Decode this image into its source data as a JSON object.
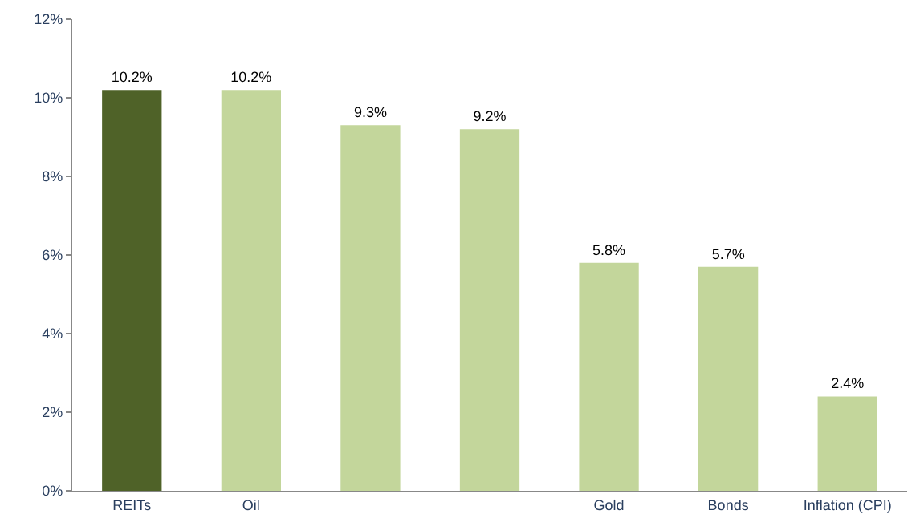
{
  "chart_data": {
    "type": "bar",
    "categories": [
      "REITs",
      "Oil",
      null,
      null,
      "Gold",
      "Bonds",
      "Inflation (CPI)"
    ],
    "values": [
      10.2,
      10.2,
      9.3,
      9.2,
      5.8,
      5.7,
      2.4
    ],
    "colors": [
      "#4f6228",
      "#c3d69b",
      "#c3d69b",
      "#c3d69b",
      "#c3d69b",
      "#c3d69b",
      "#c3d69b"
    ],
    "value_labels": [
      "10.2%",
      "10.2%",
      "9.3%",
      "9.2%",
      "5.8%",
      "5.7%",
      "2.4%"
    ],
    "ylim": [
      0,
      12
    ],
    "yticks": [
      {
        "value": 0,
        "label": "0%"
      },
      {
        "value": 2,
        "label": "2%"
      },
      {
        "value": 4,
        "label": "4%"
      },
      {
        "value": 6,
        "label": "6%"
      },
      {
        "value": 8,
        "label": "8%"
      },
      {
        "value": 10,
        "label": "10%"
      },
      {
        "value": 12,
        "label": "12%"
      }
    ]
  }
}
